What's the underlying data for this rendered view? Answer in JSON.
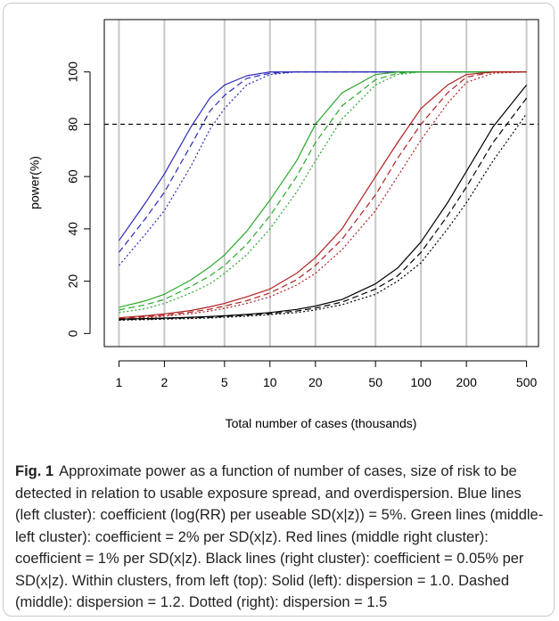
{
  "chart_data": {
    "type": "line",
    "title": "",
    "xlabel": "Total number of cases (thousands)",
    "ylabel": "power(%)",
    "x_scale": "log",
    "xlim": [
      0.8,
      600
    ],
    "ylim": [
      -5,
      120
    ],
    "x_ticks": [
      1,
      2,
      5,
      10,
      20,
      50,
      100,
      200,
      500
    ],
    "x_tick_labels": [
      "1",
      "2",
      "5",
      "10",
      "20",
      "50",
      "100",
      "200",
      "500"
    ],
    "y_ticks": [
      0,
      20,
      40,
      60,
      80,
      100
    ],
    "y_tick_labels": [
      "0",
      "20",
      "40",
      "60",
      "80",
      "100"
    ],
    "vertical_grid": true,
    "reference_line": {
      "y": 80,
      "style": "dashed",
      "color": "#000000"
    },
    "x": [
      1,
      1.5,
      2,
      3,
      4,
      5,
      7,
      10,
      15,
      20,
      30,
      50,
      70,
      100,
      150,
      200,
      300,
      500
    ],
    "series": [
      {
        "color": "#2a2ab8",
        "style": "solid",
        "values": [
          35.5,
          50,
          61,
          79,
          90,
          95,
          98.5,
          100,
          100,
          100,
          100,
          100,
          100,
          100,
          100,
          100,
          100,
          100
        ]
      },
      {
        "color": "#2a2ab8",
        "style": "dashed",
        "values": [
          31,
          44,
          54,
          72,
          85,
          91,
          97.5,
          99.5,
          100,
          100,
          100,
          100,
          100,
          100,
          100,
          100,
          100,
          100
        ]
      },
      {
        "color": "#2a2ab8",
        "style": "dotted",
        "values": [
          26,
          38,
          47,
          64,
          78,
          86,
          95,
          99,
          100,
          100,
          100,
          100,
          100,
          100,
          100,
          100,
          100,
          100
        ]
      },
      {
        "color": "#2aa82a",
        "style": "solid",
        "values": [
          10,
          12.5,
          15,
          20.5,
          25.5,
          30,
          39,
          51,
          66,
          80,
          92,
          99,
          100,
          100,
          100,
          100,
          100,
          100
        ]
      },
      {
        "color": "#2aa82a",
        "style": "dashed",
        "values": [
          9,
          11,
          13,
          18,
          22,
          26,
          34,
          45,
          60,
          73,
          87,
          97,
          99.5,
          100,
          100,
          100,
          100,
          100
        ]
      },
      {
        "color": "#2aa82a",
        "style": "dotted",
        "values": [
          8,
          9.5,
          11.5,
          15.5,
          19,
          23,
          30,
          40,
          54,
          66,
          82,
          95,
          99,
          100,
          100,
          100,
          100,
          100
        ]
      },
      {
        "color": "#b02020",
        "style": "solid",
        "values": [
          6,
          6.8,
          7.5,
          8.8,
          10.2,
          11.5,
          14,
          17,
          23,
          29,
          40,
          60,
          73,
          86,
          95,
          99,
          100,
          100
        ]
      },
      {
        "color": "#b02020",
        "style": "dashed",
        "values": [
          5.7,
          6.4,
          7,
          8.2,
          9.3,
          10.5,
          12.5,
          15.5,
          20.5,
          26,
          36,
          53,
          67,
          80,
          92,
          98,
          100,
          100
        ]
      },
      {
        "color": "#b02020",
        "style": "dotted",
        "values": [
          5.4,
          6,
          6.6,
          7.6,
          8.6,
          9.6,
          11.5,
          14,
          18.5,
          23,
          32,
          47,
          60,
          74,
          88,
          96,
          99.5,
          100
        ]
      },
      {
        "color": "#000000",
        "style": "solid",
        "values": [
          5.5,
          5.7,
          5.9,
          6.2,
          6.5,
          6.8,
          7.3,
          8,
          9.2,
          10.5,
          13,
          19,
          25,
          35,
          50,
          62,
          79,
          95
        ]
      },
      {
        "color": "#000000",
        "style": "dashed",
        "values": [
          5.3,
          5.5,
          5.7,
          6,
          6.2,
          6.5,
          7,
          7.6,
          8.6,
          9.7,
          12,
          17,
          22,
          31,
          45,
          56,
          73,
          90
        ]
      },
      {
        "color": "#000000",
        "style": "dotted",
        "values": [
          5.1,
          5.3,
          5.5,
          5.7,
          5.9,
          6.2,
          6.6,
          7.2,
          8,
          9,
          11,
          15,
          20,
          27,
          40,
          50,
          66,
          84
        ]
      }
    ]
  },
  "caption": {
    "label": "Fig. 1",
    "text": "Approximate power as a function of number of cases, size of risk to be detected in relation to usable exposure spread, and overdispersion. Blue lines (left cluster): coefficient (log(RR) per useable SD(x|z)) = 5%. Green lines (middle-left cluster): coefficient = 2% per SD(x|z). Red lines (middle right cluster): coefficient = 1% per SD(x|z). Black lines (right cluster): coefficient = 0.05% per SD(x|z). Within clusters, from left (top): Solid (left): dispersion = 1.0. Dashed (middle): dispersion = 1.2. Dotted (right): dispersion = 1.5"
  }
}
